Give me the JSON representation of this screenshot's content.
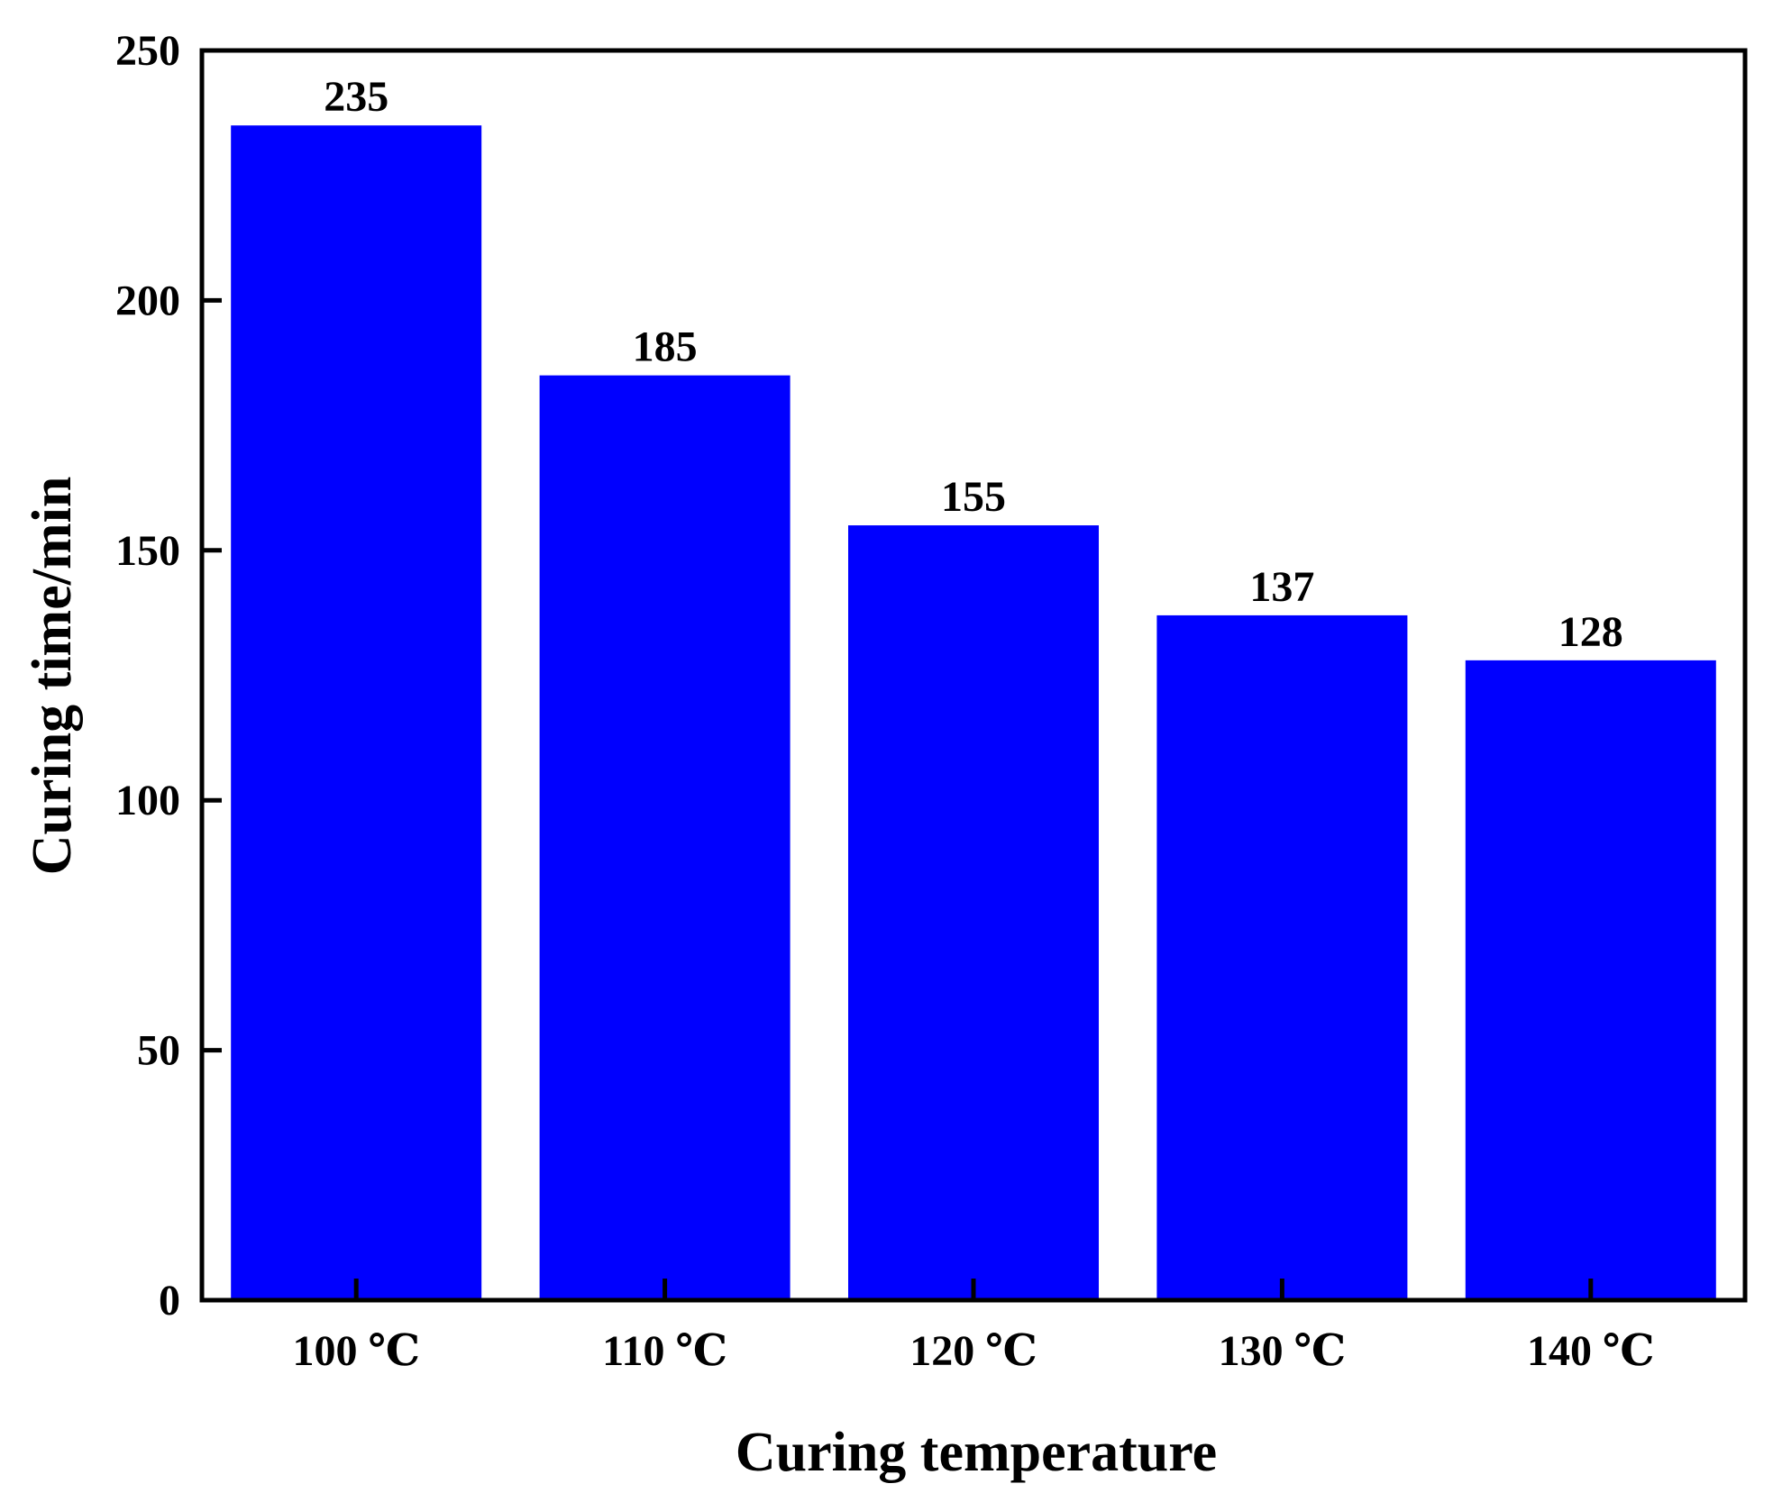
{
  "chart_data": {
    "type": "bar",
    "categories": [
      "100 ℃",
      "110 ℃",
      "120 ℃",
      "130 ℃",
      "140 ℃"
    ],
    "values": [
      235,
      185,
      155,
      137,
      128
    ],
    "data_labels": [
      "235",
      "185",
      "155",
      "137",
      "128"
    ],
    "xlabel": "Curing temperature",
    "ylabel": "Curing time/min",
    "ylim": [
      0,
      250
    ],
    "yticks": [
      0,
      50,
      100,
      150,
      200,
      250
    ],
    "ytick_labels": [
      "0",
      "50",
      "100",
      "150",
      "200",
      "250"
    ],
    "grid": false,
    "bar_color": "#0000ff",
    "axis_color": "#000000"
  }
}
